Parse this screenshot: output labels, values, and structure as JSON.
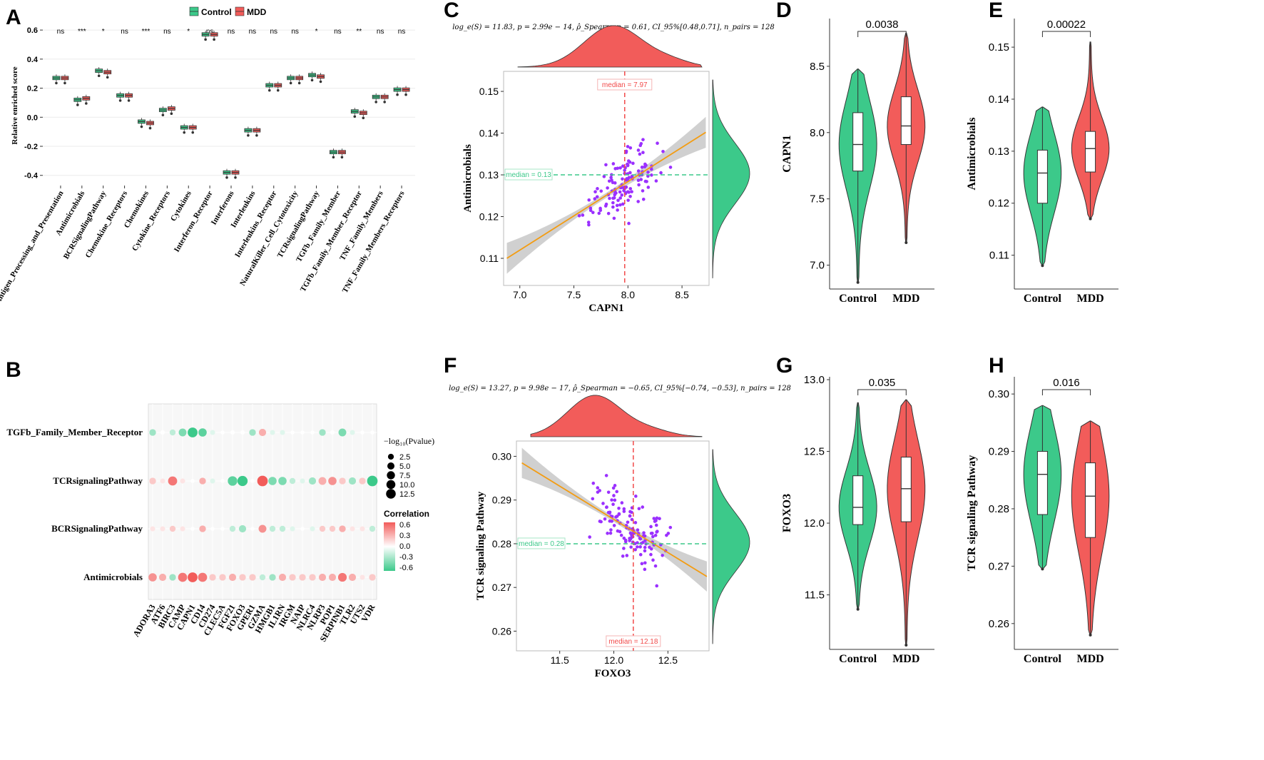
{
  "colors": {
    "control": "#3cc98a",
    "mdd": "#f25c5a",
    "scatter_point": "#9b30ff",
    "fit_line": "#f39c12",
    "ci_band": "#c8c8c8",
    "median_x": "#f24a4a",
    "median_y": "#3cc98a",
    "grid": "#ebebeb",
    "axis": "#333333"
  },
  "panel_labels": [
    "A",
    "B",
    "C",
    "D",
    "E",
    "F",
    "G",
    "H"
  ],
  "chart_data": [
    {
      "panel": "A",
      "type": "box",
      "legend": [
        "Control",
        "MDD"
      ],
      "ylabel": "Relative enriched score",
      "ylim": [
        -0.47,
        0.63
      ],
      "yticks": [
        -0.4,
        -0.2,
        0.0,
        0.2,
        0.4,
        0.6
      ],
      "ytick_labels": [
        "-0.4",
        "-0.2",
        "0.0",
        "0.2",
        "0.4",
        "0.6"
      ],
      "categories": [
        "Antigen_Processing_and_Presentation",
        "Antimicrobials",
        "BCRSignalingPathway",
        "Chemokine_Receptors",
        "Chemokines",
        "Cytokine_Receptors",
        "Cytokines",
        "Interferon_Receptor",
        "Interferons",
        "Interleukins",
        "Interleukins_Receptor",
        "NaturalKiller_Cell_Cytotoxicity",
        "TCRsignalingPathway",
        "TGFb_Family_Member",
        "TGFb_Family_Member_Receptor",
        "TNF_Family_Members",
        "TNF_Family_Members_Receptors"
      ],
      "significance": [
        "ns",
        "***",
        "*",
        "ns",
        "***",
        "ns",
        "*",
        "ns",
        "ns",
        "ns",
        "ns",
        "ns",
        "*",
        "ns",
        "**",
        "ns",
        "ns"
      ],
      "series": [
        {
          "name": "Control",
          "median": [
            0.27,
            0.12,
            0.32,
            0.15,
            -0.03,
            0.05,
            -0.07,
            0.57,
            -0.38,
            -0.09,
            0.22,
            0.27,
            0.29,
            -0.24,
            0.04,
            0.14,
            0.19
          ]
        },
        {
          "name": "MDD",
          "median": [
            0.27,
            0.13,
            0.31,
            0.15,
            -0.04,
            0.06,
            -0.07,
            0.57,
            -0.38,
            -0.09,
            0.22,
            0.27,
            0.28,
            -0.24,
            0.03,
            0.14,
            0.19
          ]
        }
      ]
    },
    {
      "panel": "B",
      "type": "dot",
      "rows": [
        "TGFb_Family_Member_Receptor",
        "TCRsignalingPathway",
        "BCRSignalingPathway",
        "Antimicrobials"
      ],
      "columns": [
        "ADORA3",
        "ATF6",
        "BIRC3",
        "CAMP",
        "CAPN1",
        "CD14",
        "CD274",
        "CLEC5A",
        "FGF21",
        "FOXO3",
        "GPER1",
        "GZMA",
        "HMGB1",
        "IL1RN",
        "IRGM",
        "NAIP",
        "NLRC4",
        "NLRP3",
        "POP1",
        "SERPINB1",
        "TLR2",
        "UTS2",
        "VDR"
      ],
      "size_legend_title": "−log₁₀(Pvalue)",
      "size_legend_values": [
        "2.5",
        "5.0",
        "7.5",
        "10.0",
        "12.5"
      ],
      "color_legend_title": "Correlation",
      "color_legend_ticks": [
        "0.6",
        "0.3",
        "0.0",
        "-0.3",
        "-0.6"
      ],
      "correlation": [
        [
          -0.3,
          0.0,
          -0.2,
          -0.4,
          -0.6,
          -0.5,
          -0.1,
          0.0,
          0.0,
          0.0,
          -0.3,
          0.3,
          -0.1,
          -0.1,
          0.0,
          0.0,
          0.0,
          -0.3,
          0.0,
          -0.4,
          -0.1,
          0.0,
          0.0
        ],
        [
          0.2,
          0.1,
          0.5,
          0.1,
          0.0,
          0.3,
          -0.1,
          0.0,
          -0.5,
          -0.6,
          0.0,
          0.6,
          -0.4,
          -0.4,
          -0.2,
          -0.1,
          -0.3,
          0.3,
          0.4,
          0.2,
          -0.3,
          0.2,
          -0.6
        ],
        [
          0.1,
          0.1,
          0.2,
          0.1,
          0.0,
          0.3,
          0.0,
          0.0,
          -0.2,
          -0.3,
          0.0,
          0.4,
          -0.2,
          -0.2,
          -0.1,
          0.0,
          -0.1,
          0.2,
          0.2,
          0.3,
          0.1,
          0.1,
          -0.2
        ],
        [
          0.4,
          0.3,
          -0.3,
          0.5,
          0.6,
          0.5,
          0.2,
          0.2,
          0.3,
          0.2,
          0.2,
          -0.2,
          -0.3,
          0.3,
          0.2,
          0.2,
          0.2,
          0.3,
          0.3,
          0.5,
          0.3,
          0.1,
          0.2
        ]
      ],
      "neglog10p": [
        [
          3,
          0.5,
          2,
          5,
          10,
          6,
          1,
          0.3,
          0.5,
          0.5,
          3,
          4,
          1,
          1,
          0.3,
          0.3,
          0.3,
          3,
          0.5,
          5,
          1,
          0.3,
          0.3
        ],
        [
          3,
          1,
          8,
          1,
          0.3,
          3,
          1,
          0.3,
          9,
          11,
          0.3,
          12,
          6,
          6,
          2,
          1,
          4,
          5,
          6,
          3,
          4,
          3,
          12
        ],
        [
          1,
          1,
          2,
          1,
          0.3,
          3,
          0.3,
          0.3,
          2,
          4,
          0.3,
          5,
          2,
          2,
          1,
          0.3,
          1,
          2,
          2,
          3,
          1,
          1,
          2
        ],
        [
          6,
          4,
          3,
          8,
          10,
          8,
          3,
          3,
          4,
          3,
          3,
          2,
          3,
          4,
          3,
          3,
          3,
          4,
          4,
          7,
          4,
          1,
          3
        ]
      ]
    },
    {
      "panel": "C",
      "type": "scatter",
      "subtitle": "log_e(S) = 11.83, p = 2.99e − 14, ρ̂_Spearman = 0.61, CI_95%[0.48,0.71], n_pairs = 128",
      "xlabel": "CAPN1",
      "ylabel": "Antimicrobials",
      "xlim": [
        6.85,
        8.75
      ],
      "ylim": [
        0.1035,
        0.1548
      ],
      "xticks": [
        7.0,
        7.5,
        8.0,
        8.5
      ],
      "xtick_labels": [
        "7.0",
        "7.5",
        "8.0",
        "8.5"
      ],
      "yticks": [
        0.11,
        0.12,
        0.13,
        0.14,
        0.15
      ],
      "ytick_labels": [
        "0.11",
        "0.12",
        "0.13",
        "0.14",
        "0.15"
      ],
      "median_x": 7.97,
      "median_y": 0.13,
      "median_x_label": "median = 7.97",
      "median_y_label": "median = 0.13",
      "fit": {
        "x": [
          6.88,
          8.72
        ],
        "y": [
          0.11,
          0.1402
        ]
      },
      "n_points": 128
    },
    {
      "panel": "D",
      "type": "violin",
      "categories": [
        "Control",
        "MDD"
      ],
      "ylabel": "CAPN1",
      "ylim": [
        6.82,
        8.86
      ],
      "yticks": [
        7.0,
        7.5,
        8.0,
        8.5
      ],
      "ytick_labels": [
        "7.0",
        "7.5",
        "8.0",
        "8.5"
      ],
      "p_value": "0.0038",
      "boxes": [
        {
          "min": 6.87,
          "q1": 7.71,
          "median": 7.91,
          "q3": 8.15,
          "max": 8.48
        },
        {
          "min": 7.17,
          "q1": 7.91,
          "median": 8.05,
          "q3": 8.27,
          "max": 8.75
        }
      ]
    },
    {
      "panel": "E",
      "type": "violin",
      "categories": [
        "Control",
        "MDD"
      ],
      "ylabel": "Antimicrobials",
      "ylim": [
        0.1035,
        0.1555
      ],
      "yticks": [
        0.11,
        0.12,
        0.13,
        0.14,
        0.15
      ],
      "ytick_labels": [
        "0.11",
        "0.12",
        "0.13",
        "0.14",
        "0.15"
      ],
      "p_value": "0.00022",
      "boxes": [
        {
          "min": 0.108,
          "q1": 0.12,
          "median": 0.1258,
          "q3": 0.1302,
          "max": 0.1385
        },
        {
          "min": 0.117,
          "q1": 0.126,
          "median": 0.1305,
          "q3": 0.1338,
          "max": 0.151
        }
      ]
    },
    {
      "panel": "F",
      "type": "scatter",
      "subtitle": "log_e(S) = 13.27, p = 9.98e − 17, ρ̂_Spearman = −0.65, CI_95%[−0.74, −0.53], n_pairs = 128",
      "xlabel": "FOXO3",
      "ylabel": "TCR signaling Pathway",
      "xlim": [
        11.1,
        12.88
      ],
      "ylim": [
        0.2555,
        0.3035
      ],
      "xticks": [
        11.5,
        12.0,
        12.5
      ],
      "xtick_labels": [
        "11.5",
        "12.0",
        "12.5"
      ],
      "yticks": [
        0.26,
        0.27,
        0.28,
        0.29,
        0.3
      ],
      "ytick_labels": [
        "0.26",
        "0.27",
        "0.28",
        "0.29",
        "0.30"
      ],
      "median_x": 12.18,
      "median_y": 0.28,
      "median_x_label": "median = 12.18",
      "median_y_label": "median = 0.28",
      "fit": {
        "x": [
          11.15,
          12.86
        ],
        "y": [
          0.2985,
          0.2725
        ]
      },
      "n_points": 128
    },
    {
      "panel": "G",
      "type": "violin",
      "categories": [
        "Control",
        "MDD"
      ],
      "ylabel": "FOXO3",
      "ylim": [
        11.12,
        13.02
      ],
      "yticks": [
        11.5,
        12.0,
        12.5,
        13.0
      ],
      "ytick_labels": [
        "11.5",
        "12.0",
        "12.5",
        "13.0"
      ],
      "p_value": "0.035",
      "boxes": [
        {
          "min": 11.4,
          "q1": 11.99,
          "median": 12.11,
          "q3": 12.33,
          "max": 12.84
        },
        {
          "min": 11.15,
          "q1": 12.01,
          "median": 12.24,
          "q3": 12.46,
          "max": 12.86
        }
      ]
    },
    {
      "panel": "H",
      "type": "violin",
      "categories": [
        "Control",
        "MDD"
      ],
      "ylabel": "TCR signaling Pathway",
      "ylim": [
        0.2555,
        0.303
      ],
      "yticks": [
        0.26,
        0.27,
        0.28,
        0.29,
        0.3
      ],
      "ytick_labels": [
        "0.26",
        "0.27",
        "0.28",
        "0.29",
        "0.30"
      ],
      "p_value": "0.016",
      "boxes": [
        {
          "min": 0.2695,
          "q1": 0.279,
          "median": 0.286,
          "q3": 0.29,
          "max": 0.298
        },
        {
          "min": 0.258,
          "q1": 0.275,
          "median": 0.2822,
          "q3": 0.288,
          "max": 0.2953
        }
      ]
    }
  ]
}
